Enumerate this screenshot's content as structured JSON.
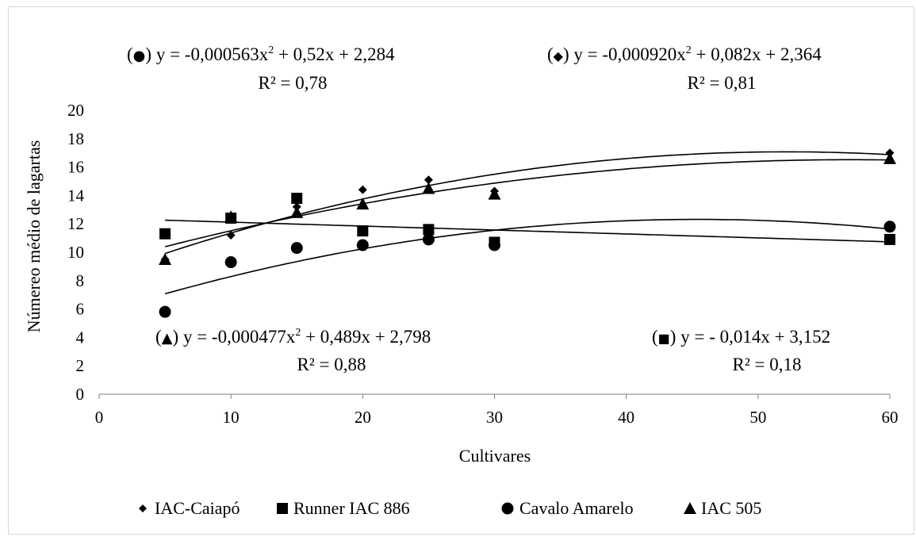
{
  "chart_data": {
    "type": "scatter",
    "xlabel": "Cultivares",
    "ylabel": "Númereo médio de lagartas",
    "xlim": [
      0,
      60
    ],
    "ylim": [
      0,
      20
    ],
    "xticks": [
      0,
      10,
      20,
      30,
      40,
      50,
      60
    ],
    "yticks": [
      0,
      2,
      4,
      6,
      8,
      10,
      12,
      14,
      16,
      18,
      20
    ],
    "grid": false,
    "legend_position": "bottom",
    "series": [
      {
        "name": "IAC-Caiapó",
        "marker": "diamond",
        "x": [
          5,
          10,
          15,
          20,
          25,
          30,
          60
        ],
        "y": [
          9.5,
          11.2,
          13.2,
          14.4,
          15.1,
          14.3,
          17.0
        ]
      },
      {
        "name": "Runner IAC 886",
        "marker": "square",
        "x": [
          5,
          10,
          15,
          20,
          25,
          30,
          60
        ],
        "y": [
          11.3,
          12.4,
          13.8,
          11.5,
          11.6,
          10.7,
          10.9
        ]
      },
      {
        "name": "Cavalo Amarelo",
        "marker": "circle",
        "x": [
          5,
          10,
          15,
          20,
          25,
          30,
          60
        ],
        "y": [
          5.8,
          9.3,
          10.3,
          10.5,
          10.9,
          10.5,
          11.8
        ]
      },
      {
        "name": "IAC 505",
        "marker": "triangle",
        "x": [
          5,
          10,
          15,
          20,
          25,
          30,
          60
        ],
        "y": [
          9.5,
          12.5,
          12.8,
          13.4,
          14.5,
          14.1,
          16.6
        ]
      }
    ],
    "equations": [
      {
        "symbol": "●",
        "prefix": "(",
        "suffix": ") ",
        "text": "y = -0,000563x",
        "sup": "2",
        "text2": " + 0,52x + 2,284",
        "r2": "R² = 0,78"
      },
      {
        "symbol": "◆",
        "prefix": "(",
        "suffix": ") ",
        "text": "y = -0,000920x",
        "sup": "2",
        "text2": " + 0,082x + 2,364",
        "r2": "R² = 0,81"
      },
      {
        "symbol": "▲",
        "prefix": "(",
        "suffix": ") ",
        "text": "y = -0,000477x",
        "sup": "2",
        "text2": " + 0,489x + 2,798",
        "r2": "R² = 0,88"
      },
      {
        "symbol": "■",
        "prefix": "(",
        "suffix": ") ",
        "text": "y = - 0,014x + 3,152",
        "sup": "",
        "text2": "",
        "r2": "R² = 0,18"
      }
    ],
    "colors": {
      "marker": "#000000",
      "trend": "#000000",
      "axis": "#808080"
    }
  }
}
